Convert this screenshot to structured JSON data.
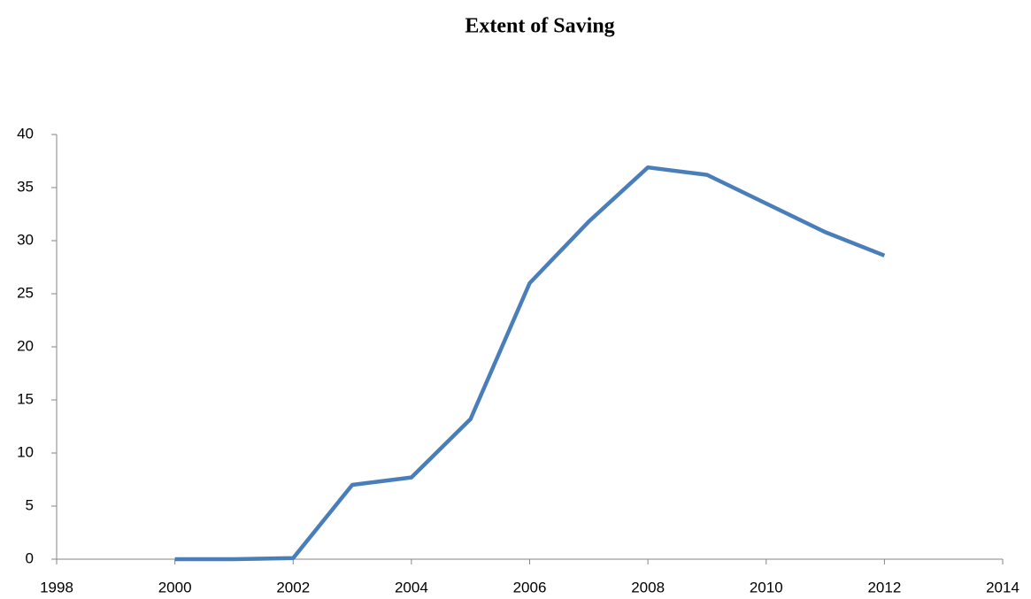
{
  "chart_data": {
    "type": "line",
    "title": "Extent of Saving",
    "x": [
      2000,
      2001,
      2002,
      2003,
      2004,
      2005,
      2006,
      2007,
      2008,
      2009,
      2010,
      2011,
      2012
    ],
    "series": [
      {
        "color": "#4a7ebb",
        "values": [
          0,
          0,
          0.1,
          7.0,
          7.7,
          13.2,
          26.0,
          31.8,
          36.9,
          36.2,
          33.5,
          30.8,
          28.6
        ]
      }
    ],
    "xlim": [
      1998,
      2014
    ],
    "xticks": [
      1998,
      2000,
      2002,
      2004,
      2006,
      2008,
      2010,
      2012,
      2014
    ],
    "ylim": [
      0,
      40
    ],
    "yticks": [
      0,
      5,
      10,
      15,
      20,
      25,
      30,
      35,
      40
    ],
    "grid": false
  }
}
